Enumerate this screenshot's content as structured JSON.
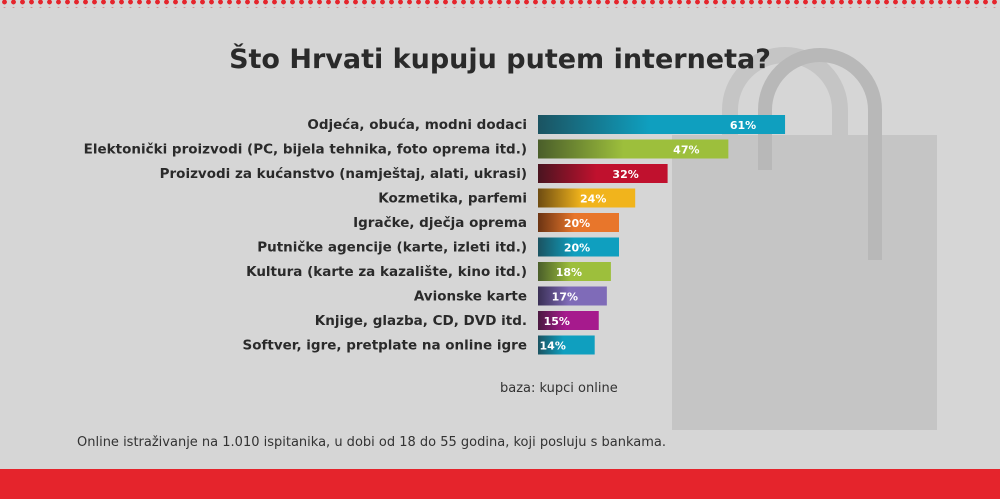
{
  "title": "Što Hrvati kupuju putem interneta?",
  "base_note": "baza: kupci online",
  "footnote": "Online istraživanje na 1.010 ispitanika, u dobi od 18 do 55 godina, koji posluju s bankama.",
  "colors": {
    "accent_red": "#e5242c",
    "background": "#d6d6d6"
  },
  "chart_data": {
    "type": "bar",
    "orientation": "horizontal",
    "title": "Što Hrvati kupuju putem interneta?",
    "categories": [
      "Odjeća, obuća, modni dodaci",
      "Elektonički proizvodi (PC, bijela tehnika, foto oprema itd.)",
      "Proizvodi za kućanstvo (namještaj, alati, ukrasi)",
      "Kozmetika, parfemi",
      "Igračke, dječja oprema",
      "Putničke agencije (karte, izleti itd.)",
      "Kultura (karte za kazalište, kino itd.)",
      "Avionske karte",
      "Knjige, glazba, CD, DVD itd.",
      "Softver, igre, pretplate na online igre"
    ],
    "values": [
      61,
      47,
      32,
      24,
      20,
      20,
      18,
      17,
      15,
      14
    ],
    "value_labels": [
      "61%",
      "47%",
      "32%",
      "24%",
      "20%",
      "20%",
      "18%",
      "17%",
      "15%",
      "14%"
    ],
    "unit": "%",
    "colors": [
      [
        "#1b5361",
        "#0f9fbf"
      ],
      [
        "#4a5e2a",
        "#9dbf3c"
      ],
      [
        "#4a1420",
        "#c0112e"
      ],
      [
        "#6e4c12",
        "#f1b41c"
      ],
      [
        "#6b3413",
        "#e8762b"
      ],
      [
        "#1b5361",
        "#0f9fbf"
      ],
      [
        "#4a5e2a",
        "#9dbf3c"
      ],
      [
        "#3a2f55",
        "#7f6bb8"
      ],
      [
        "#4a1940",
        "#a61a8d"
      ],
      [
        "#1b5361",
        "#0f9fbf"
      ]
    ],
    "xlim": [
      0,
      100
    ],
    "grid": false,
    "legend": "none"
  }
}
